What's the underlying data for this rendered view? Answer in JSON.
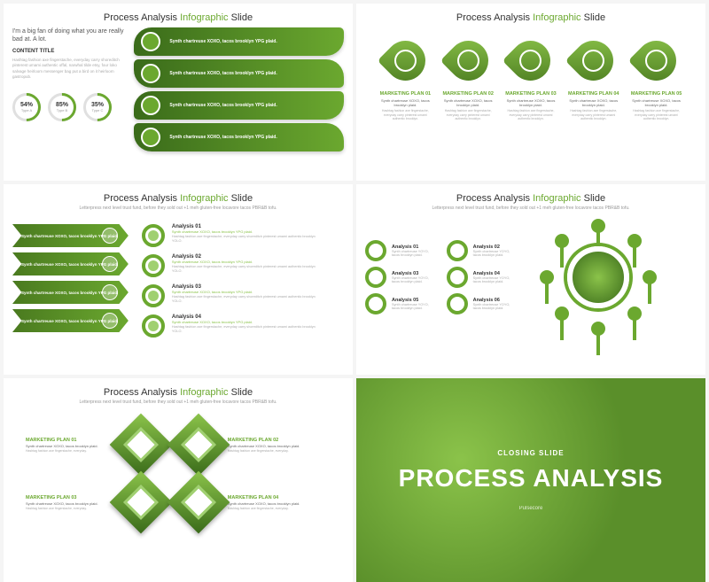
{
  "colors": {
    "primary": "#6ba82f",
    "dark": "#3a6b1a",
    "light": "#8bc34a",
    "accent": "#a0d070"
  },
  "common": {
    "title_pre": "Process Analysis ",
    "title_green": "Infographic",
    "title_post": " Slide",
    "subtitle": "Letterpress next level trust fund, before they sold out +1 meh gluten-free locavore tacos PBR&B tofu."
  },
  "s1": {
    "intro": "I'm a big fan of doing what you are really bad at. A lot.",
    "content_title": "CONTENT TITLE",
    "desc": "Hashtag fashion axe fingerstache, everyday carry shoreditch pinterest umami authentic offal, narwhal tilde etsy, four loko salvage heirloom messenger bag put a bird on it heirloom gastropub.",
    "progress": [
      {
        "pct": "54%",
        "type": "Type A"
      },
      {
        "pct": "85%",
        "type": "Type B"
      },
      {
        "pct": "35%",
        "type": "Type C"
      }
    ],
    "leaves": [
      {
        "t": "Synth chartreuse XOXO, tacos brooklyn YPG plaid.",
        "s": "Synth chartreuse"
      },
      {
        "t": "Synth chartreuse XOXO, tacos brooklyn YPG plaid.",
        "s": "Synth chartreuse"
      },
      {
        "t": "Synth chartreuse XOXO, tacos brooklyn YPG plaid.",
        "s": "Synth chartreuse"
      },
      {
        "t": "Synth chartreuse XOXO, tacos brooklyn YPG plaid.",
        "s": "Synth chartreuse"
      }
    ]
  },
  "s2": {
    "items": [
      {
        "t": "MARKETING PLAN 01",
        "s": "Synth chartreuse XOXO, tacos brooklyn plaid.",
        "d": "Hashtag fashion axe fingerstache, everyday carry pinterest umami authentic brooklyn."
      },
      {
        "t": "MARKETING PLAN 02",
        "s": "Synth chartreuse XOXO, tacos brooklyn plaid.",
        "d": "Hashtag fashion axe fingerstache, everyday carry pinterest umami authentic brooklyn."
      },
      {
        "t": "MARKETING PLAN 03",
        "s": "Synth chartreuse XOXO, tacos brooklyn plaid.",
        "d": "Hashtag fashion axe fingerstache, everyday carry pinterest umami authentic brooklyn."
      },
      {
        "t": "MARKETING PLAN 04",
        "s": "Synth chartreuse XOXO, tacos brooklyn plaid.",
        "d": "Hashtag fashion axe fingerstache, everyday carry pinterest umami authentic brooklyn."
      },
      {
        "t": "MARKETING PLAN 05",
        "s": "Synth chartreuse XOXO, tacos brooklyn plaid.",
        "d": "Hashtag fashion axe fingerstache, everyday carry pinterest umami authentic brooklyn."
      }
    ]
  },
  "s3": {
    "arrows": [
      {
        "t": "Synth chartreuse XOXO, tacos brooklyn YPG plaid."
      },
      {
        "t": "Synth chartreuse XOXO, tacos brooklyn YPG plaid."
      },
      {
        "t": "Synth chartreuse XOXO, tacos brooklyn YPG plaid."
      },
      {
        "t": "Synth chartreuse XOXO, tacos brooklyn YPG plaid."
      }
    ],
    "list": [
      {
        "t": "Analysis 01",
        "s": "Synth chartreuse XOXO, tacos brooklyn YPG plaid.",
        "d": "Hashtag fashion axe fingerstache, everyday carry shoreditch pinterest umami authentic brooklyn YOLO."
      },
      {
        "t": "Analysis 02",
        "s": "Synth chartreuse XOXO, tacos brooklyn YPG plaid.",
        "d": "Hashtag fashion axe fingerstache, everyday carry shoreditch pinterest umami authentic brooklyn YOLO."
      },
      {
        "t": "Analysis 03",
        "s": "Synth chartreuse XOXO, tacos brooklyn YPG plaid.",
        "d": "Hashtag fashion axe fingerstache, everyday carry shoreditch pinterest umami authentic brooklyn YOLO."
      },
      {
        "t": "Analysis 04",
        "s": "Synth chartreuse XOXO, tacos brooklyn YPG plaid.",
        "d": "Hashtag fashion axe fingerstache, everyday carry shoreditch pinterest umami authentic brooklyn YOLO."
      }
    ]
  },
  "s4": {
    "items": [
      {
        "t": "Analysis 01",
        "s": "Synth chartreuse YOYO, tacos brooklyn plaid."
      },
      {
        "t": "Analysis 02",
        "s": "Synth chartreuse YOYO, tacos brooklyn plaid."
      },
      {
        "t": "Analysis 03",
        "s": "Synth chartreuse YOYO, tacos brooklyn plaid."
      },
      {
        "t": "Analysis 04",
        "s": "Synth chartreuse YOYO, tacos brooklyn plaid."
      },
      {
        "t": "Analysis 05",
        "s": "Synth chartreuse YOYO, tacos brooklyn plaid."
      },
      {
        "t": "Analysis 06",
        "s": "Synth chartreuse YOYO, tacos brooklyn plaid."
      }
    ]
  },
  "s5": {
    "items": [
      {
        "t": "MARKETING PLAN 01",
        "s": "Synth chartreuse XOXO, tacos brooklyn plaid.",
        "d": "Hashtag fashion axe fingerstache, everyday."
      },
      {
        "t": "MARKETING PLAN 02",
        "s": "Synth chartreuse XOXO, tacos brooklyn plaid.",
        "d": "Hashtag fashion axe fingerstache, everyday."
      },
      {
        "t": "MARKETING PLAN 03",
        "s": "Synth chartreuse XOXO, tacos brooklyn plaid.",
        "d": "Hashtag fashion axe fingerstache, everyday."
      },
      {
        "t": "MARKETING PLAN 04",
        "s": "Synth chartreuse XOXO, tacos brooklyn plaid.",
        "d": "Hashtag fashion axe fingerstache, everyday."
      }
    ]
  },
  "s6": {
    "close": "CLOSING SLIDE",
    "main": "PROCESS ANALYSIS",
    "sub": "Pulsecore"
  }
}
